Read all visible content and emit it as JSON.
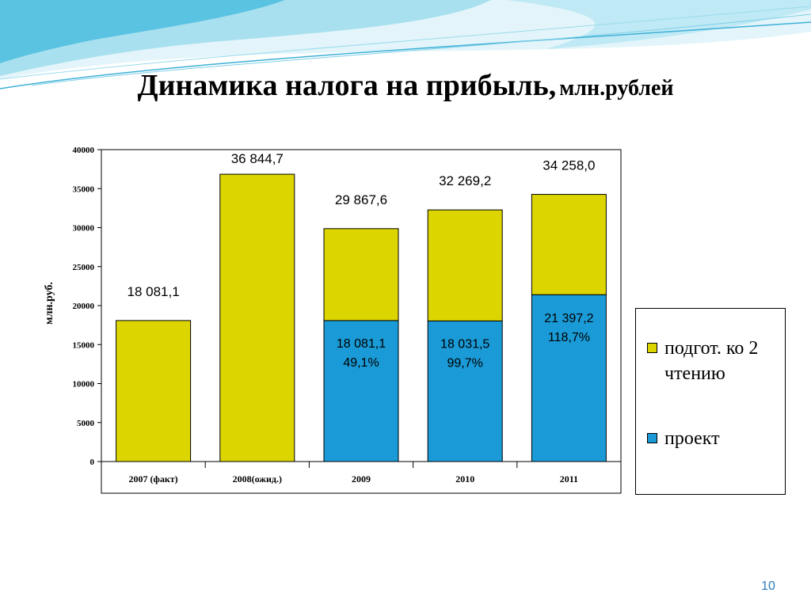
{
  "slide": {
    "title_main": "Динамика налога на прибыль,",
    "title_unit": "млн.рублей",
    "page_number": "10"
  },
  "colors": {
    "yellow": "#ddd500",
    "blue": "#1a9ad6",
    "decor_light": "#c8ecf4",
    "decor_mid": "#7fd0e6",
    "decor_dark": "#3fb0d8"
  },
  "chart_data": {
    "type": "bar",
    "stacked": true,
    "categories": [
      "2007 (факт)",
      "2008(ожид.)",
      "2009",
      "2010",
      "2011"
    ],
    "series": [
      {
        "name": "проект",
        "color": "#1a9ad6",
        "values": [
          0,
          0,
          18081.1,
          18031.5,
          21397.2
        ]
      },
      {
        "name": "подгот. ко 2 чтению",
        "color": "#ddd500",
        "values": [
          18081.1,
          36844.7,
          11786.5,
          14237.7,
          12860.8
        ]
      }
    ],
    "total_labels": [
      "18 081,1",
      "36 844,7",
      "29 867,6",
      "32 269,2",
      "34 258,0"
    ],
    "inner_labels": [
      {
        "category": "2009",
        "line1": "18 081,1",
        "line2": "49,1%"
      },
      {
        "category": "2010",
        "line1": "18 031,5",
        "line2": "99,7%"
      },
      {
        "category": "2011",
        "line1": "21 397,2",
        "line2": "118,7%"
      }
    ],
    "ylabel": "млн.руб.",
    "ylim": [
      0,
      40000
    ],
    "yticks": [
      0,
      5000,
      10000,
      15000,
      20000,
      25000,
      30000,
      35000,
      40000
    ],
    "grid": false,
    "legend_position": "right"
  }
}
